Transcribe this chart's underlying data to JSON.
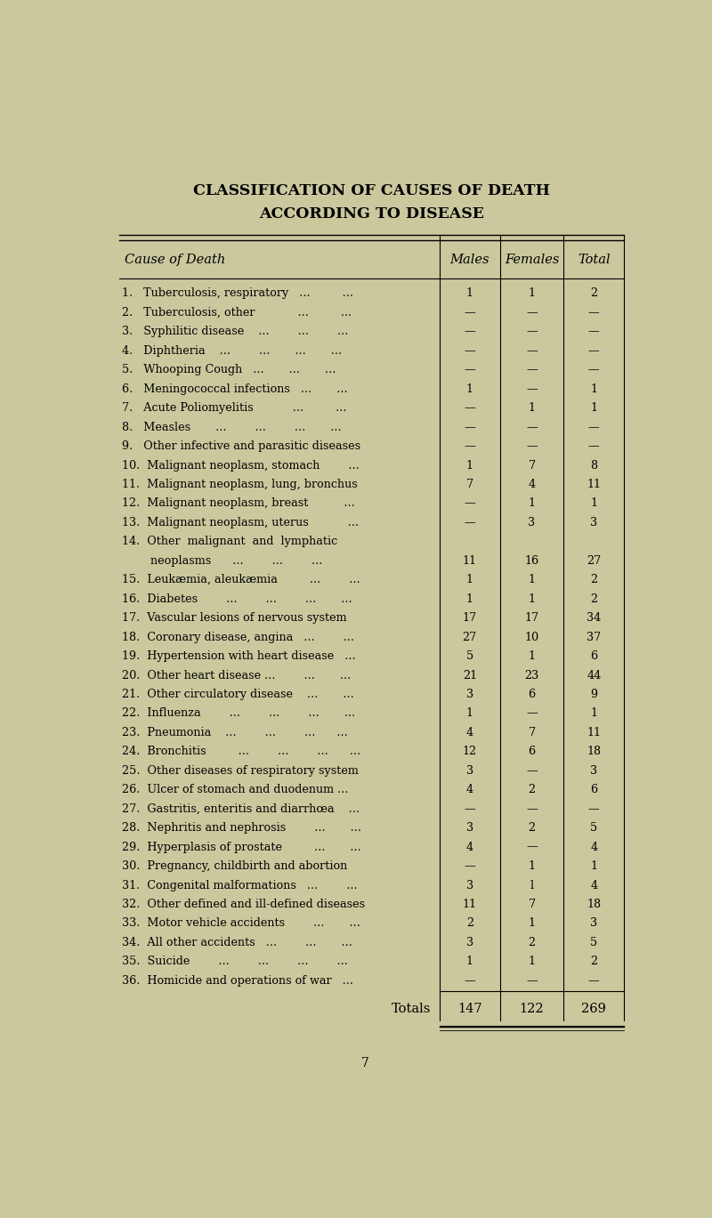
{
  "title_line1": "CLASSIFICATION OF CAUSES OF DEATH",
  "title_line2": "ACCORDING TO DISEASE",
  "bg_color": "#cbc89e",
  "header": [
    "Cause of Death",
    "Males",
    "Females",
    "Total"
  ],
  "rows": [
    [
      "1.   Tuberculosis, respiratory   ...         ...",
      "1",
      "1",
      "2"
    ],
    [
      "2.   Tuberculosis, other            ...         ...",
      "—",
      "—",
      "—"
    ],
    [
      "3.   Syphilitic disease    ...        ...        ...",
      "—",
      "—",
      "—"
    ],
    [
      "4.   Diphtheria    ...        ...       ...       ...",
      "—",
      "—",
      "—"
    ],
    [
      "5.   Whooping Cough   ...       ...       ...",
      "—",
      "—",
      "—"
    ],
    [
      "6.   Meningococcal infections   ...       ...",
      "1",
      "—",
      "1"
    ],
    [
      "7.   Acute Poliomyelitis           ...         ...",
      "—",
      "1",
      "1"
    ],
    [
      "8.   Measles       ...        ...        ...       ...",
      "—",
      "—",
      "—"
    ],
    [
      "9.   Other infective and parasitic diseases",
      "—",
      "—",
      "—"
    ],
    [
      "10.  Malignant neoplasm, stomach        ...",
      "1",
      "7",
      "8"
    ],
    [
      "11.  Malignant neoplasm, lung, bronchus",
      "7",
      "4",
      "11"
    ],
    [
      "12.  Malignant neoplasm, breast          ...",
      "—",
      "1",
      "1"
    ],
    [
      "13.  Malignant neoplasm, uterus           ...",
      "—",
      "3",
      "3"
    ],
    [
      "14.  Other  malignant  and  lymphatic",
      "",
      "",
      ""
    ],
    [
      "        neoplasms      ...        ...        ...",
      "11",
      "16",
      "27"
    ],
    [
      "15.  Leukæmia, aleukæmia         ...        ...",
      "1",
      "1",
      "2"
    ],
    [
      "16.  Diabetes        ...        ...        ...       ...",
      "1",
      "1",
      "2"
    ],
    [
      "17.  Vascular lesions of nervous system",
      "17",
      "17",
      "34"
    ],
    [
      "18.  Coronary disease, angina   ...        ...",
      "27",
      "10",
      "37"
    ],
    [
      "19.  Hypertension with heart disease   ...",
      "5",
      "1",
      "6"
    ],
    [
      "20.  Other heart disease ...        ...       ...",
      "21",
      "23",
      "44"
    ],
    [
      "21.  Other circulatory disease    ...       ...",
      "3",
      "6",
      "9"
    ],
    [
      "22.  Influenza        ...        ...        ...       ...",
      "1",
      "—",
      "1"
    ],
    [
      "23.  Pneumonia    ...        ...        ...      ...",
      "4",
      "7",
      "11"
    ],
    [
      "24.  Bronchitis         ...        ...        ...      ...",
      "12",
      "6",
      "18"
    ],
    [
      "25.  Other diseases of respiratory system",
      "3",
      "—",
      "3"
    ],
    [
      "26.  Ulcer of stomach and duodenum ...",
      "4",
      "2",
      "6"
    ],
    [
      "27.  Gastritis, enteritis and diarrhœa    ...",
      "—",
      "—",
      "—"
    ],
    [
      "28.  Nephritis and nephrosis        ...       ...",
      "3",
      "2",
      "5"
    ],
    [
      "29.  Hyperplasis of prostate         ...       ...",
      "4",
      "—",
      "4"
    ],
    [
      "30.  Pregnancy, childbirth and abortion",
      "—",
      "1",
      "1"
    ],
    [
      "31.  Congenital malformations   ...        ...",
      "3",
      "l",
      "4"
    ],
    [
      "32.  Other defined and ill-defined diseases",
      "11",
      "7",
      "18"
    ],
    [
      "33.  Motor vehicle accidents        ...       ...",
      "2",
      "1",
      "3"
    ],
    [
      "34.  All other accidents   ...        ...       ...",
      "3",
      "2",
      "5"
    ],
    [
      "35.  Suicide        ...        ...        ...        ...",
      "1",
      "1",
      "2"
    ],
    [
      "36.  Homicide and operations of war   ...",
      "—",
      "—",
      "—"
    ]
  ],
  "totals": [
    "Totals",
    "147",
    "122",
    "269"
  ],
  "page_number": "7",
  "title_fontsize": 12.5,
  "header_fontsize": 10.5,
  "row_fontsize": 9.2,
  "totals_fontsize": 10.5
}
